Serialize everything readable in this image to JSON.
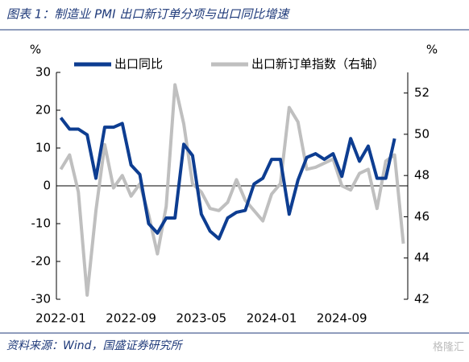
{
  "title": "图表 1：制造业 PMI 出口新订单分项与出口同比增速",
  "source": "资料来源：Wind，国盛证券研究所",
  "watermark": "格隆汇",
  "chart_data": {
    "type": "line",
    "y_label": "%",
    "y2_label": "%",
    "categories": [
      "2022-01",
      null,
      null,
      null,
      null,
      null,
      null,
      null,
      "2022-09",
      null,
      null,
      null,
      null,
      null,
      null,
      null,
      "2023-05",
      null,
      null,
      null,
      null,
      null,
      null,
      null,
      "2024-01",
      null,
      null,
      null,
      null,
      null,
      null,
      null,
      "2024-09",
      null,
      null,
      null,
      null,
      null,
      null,
      null
    ],
    "series": [
      {
        "name": "出口同比",
        "color": "#0d3d91",
        "values": [
          18,
          15,
          15,
          13.5,
          2,
          15.5,
          15.5,
          16.5,
          5.5,
          3,
          -10,
          -12.5,
          -8.5,
          -8.5,
          11,
          8,
          -7.5,
          -12,
          -14,
          -8.5,
          -7,
          -6.5,
          0.5,
          2,
          7,
          7,
          -7.5,
          1.5,
          7.5,
          8.5,
          7,
          8.5,
          2.5,
          12.5,
          6.5,
          10.5,
          2,
          2,
          12.5,
          null
        ]
      },
      {
        "name": "出口新订单指数（右轴）",
        "color": "#bfbfbf",
        "axis": "y2",
        "values": [
          48.3,
          49.0,
          47.2,
          42.2,
          46.3,
          49.5,
          47.4,
          48.0,
          47.0,
          47.6,
          46.1,
          44.2,
          46.5,
          52.4,
          50.5,
          47.6,
          47.2,
          46.4,
          46.3,
          46.7,
          47.8,
          46.8,
          46.3,
          45.8,
          47.1,
          47.6,
          51.3,
          50.6,
          48.3,
          48.4,
          48.6,
          48.8,
          47.5,
          47.3,
          48.1,
          48.3,
          46.4,
          48.7,
          49.0,
          44.7
        ]
      }
    ],
    "ylim": [
      -30,
      30
    ],
    "yticks": [
      -30,
      -20,
      -10,
      0,
      10,
      20,
      30
    ],
    "y2lim": [
      42,
      53
    ],
    "y2ticks": [
      42,
      44,
      46,
      48,
      50,
      52
    ],
    "grid": false
  }
}
